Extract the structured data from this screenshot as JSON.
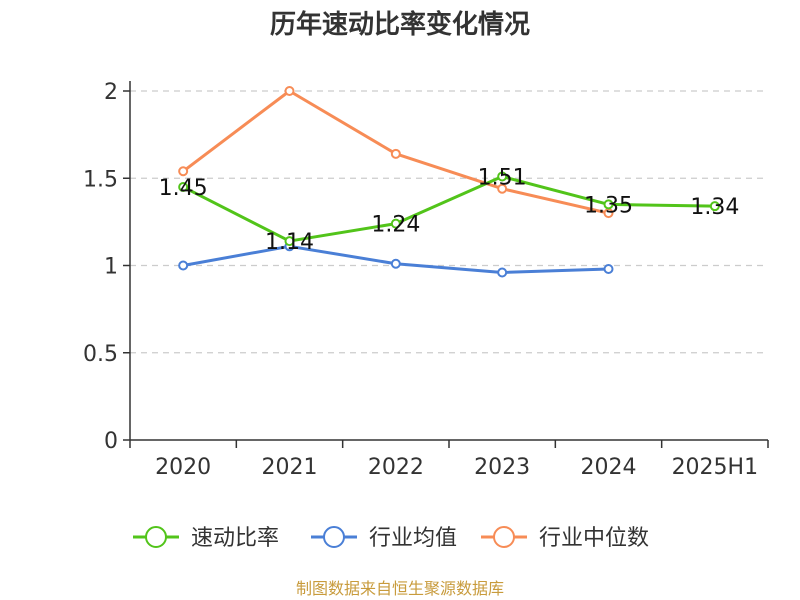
{
  "chart_data": {
    "type": "line",
    "title": "历年速动比率变化情况",
    "categories": [
      "2020",
      "2021",
      "2022",
      "2023",
      "2024",
      "2025H1"
    ],
    "ylim": [
      0,
      2
    ],
    "yticks": [
      0,
      0.5,
      1,
      1.5,
      2
    ],
    "ytick_labels": [
      "0",
      "0.5",
      "1",
      "1.5",
      "2"
    ],
    "grid": true,
    "legend_position": "bottom",
    "series": [
      {
        "name": "速动比率",
        "color": "#52c41a",
        "values": [
          1.45,
          1.14,
          1.24,
          1.51,
          1.35,
          1.34
        ],
        "data_labels": [
          "1.45",
          "1.14",
          "1.24",
          "1.51",
          "1.35",
          "1.34"
        ],
        "show_labels": true
      },
      {
        "name": "行业均值",
        "color": "#4a7fd6",
        "values": [
          1.0,
          1.11,
          1.01,
          0.96,
          0.98,
          null
        ],
        "show_labels": false
      },
      {
        "name": "行业中位数",
        "color": "#f78c56",
        "values": [
          1.54,
          2.0,
          1.64,
          1.44,
          1.3,
          null
        ],
        "show_labels": false
      }
    ],
    "source": "制图数据来自恒生聚源数据库"
  }
}
